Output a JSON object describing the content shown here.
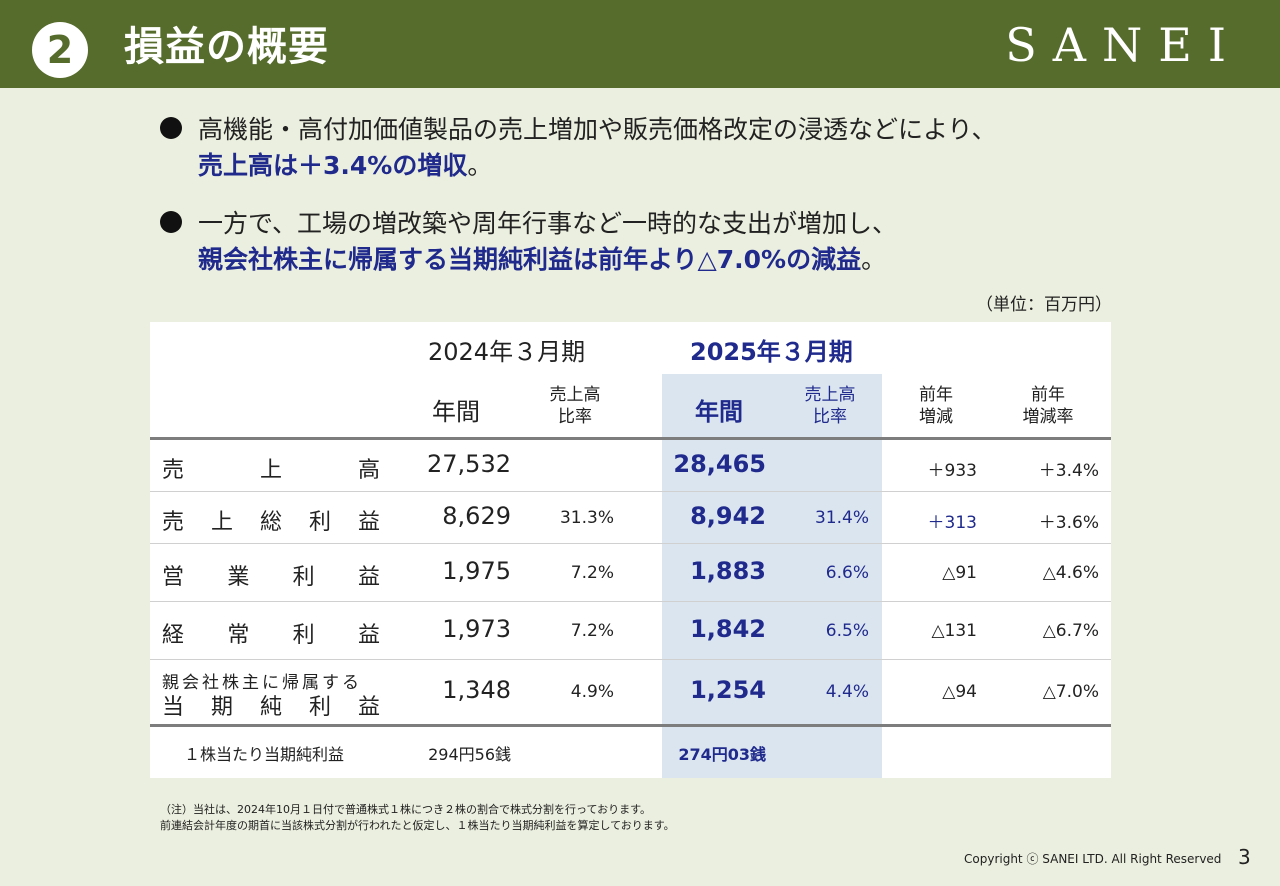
{
  "header": {
    "number": "2",
    "title": "損益の概要",
    "logo": "SANEI"
  },
  "bullets": [
    {
      "line1": "高機能・高付加価値製品の売上増加や販売価格改定の浸透などにより、",
      "line2": "売上高は＋3.4%の増収",
      "line2_suffix": "。"
    },
    {
      "line1": "一方で、工場の増改築や周年行事など一時的な支出が増加し、",
      "line2": "親会社株主に帰属する当期純利益は前年より△7.0%の減益",
      "line2_suffix": "。"
    }
  ],
  "unit": "（単位：百万円）",
  "table": {
    "period_prev": "2024年３月期",
    "period_curr": "2025年３月期",
    "col_annual": "年間",
    "col_ratio_l1": "売上高",
    "col_ratio_l2": "比率",
    "col_diff_l1": "前年",
    "col_diff_l2": "増減",
    "col_diffr_l1": "前年",
    "col_diffr_l2": "増減率",
    "rows": [
      {
        "label_chars": [
          "売",
          "上",
          "高"
        ],
        "prev": "27,532",
        "prev_ratio": "",
        "curr": "28,465",
        "curr_ratio": "",
        "diff": "＋933",
        "diff_rate": "＋3.4%"
      },
      {
        "label_chars": [
          "売",
          "上",
          "総",
          "利",
          "益"
        ],
        "prev": "8,629",
        "prev_ratio": "31.3%",
        "curr": "8,942",
        "curr_ratio": "31.4%",
        "diff": "＋313",
        "diff_rate": "＋3.6%"
      },
      {
        "label_chars": [
          "営",
          "業",
          "利",
          "益"
        ],
        "prev": "1,975",
        "prev_ratio": "7.2%",
        "curr": "1,883",
        "curr_ratio": "6.6%",
        "diff": "△91",
        "diff_rate": "△4.6%"
      },
      {
        "label_chars": [
          "経",
          "常",
          "利",
          "益"
        ],
        "prev": "1,973",
        "prev_ratio": "7.2%",
        "curr": "1,842",
        "curr_ratio": "6.5%",
        "diff": "△131",
        "diff_rate": "△6.7%"
      }
    ],
    "net_row": {
      "label_top": "親会社株主に帰属する",
      "label_chars": [
        "当",
        "期",
        "純",
        "利",
        "益"
      ],
      "prev": "1,348",
      "prev_ratio": "4.9%",
      "curr": "1,254",
      "curr_ratio": "4.4%",
      "diff": "△94",
      "diff_rate": "△7.0%"
    },
    "eps": {
      "label": "１株当たり当期純利益",
      "prev": "294円56銭",
      "curr": "274円03銭"
    }
  },
  "notes": [
    "（注）当社は、2024年10月１日付で普通株式１株につき２株の割合で株式分割を行っております。",
    "前連結会計年度の期首に当該株式分割が行われたと仮定し、１株当たり当期純利益を算定しております。"
  ],
  "footer": {
    "copyright": "Copyright ⓒ SANEI LTD. All Right Reserved",
    "page": "3"
  },
  "colors": {
    "header_bg": "#566c2c",
    "page_bg": "#ebefdf",
    "accent_blue": "#1f2a8c",
    "highlight_col": "#dbe5f0"
  }
}
